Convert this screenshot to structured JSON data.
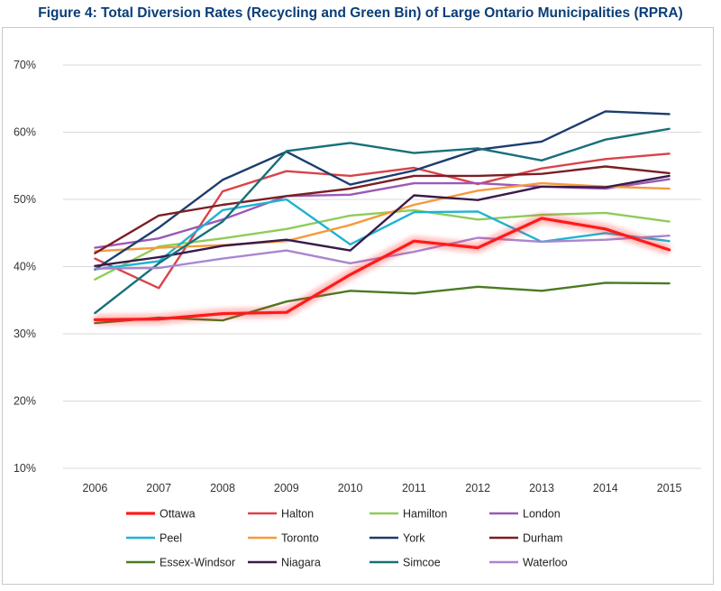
{
  "title": "Figure 4: Total Diversion Rates (Recycling and Green Bin) of Large Ontario Municipalities (RPRA)",
  "chart_data": {
    "type": "line",
    "title": "Figure 4: Total Diversion Rates (Recycling and Green Bin) of Large Ontario Municipalities (RPRA)",
    "xlabel": "",
    "ylabel": "",
    "x": [
      "2006",
      "2007",
      "2008",
      "2009",
      "2010",
      "2011",
      "2012",
      "2013",
      "2014",
      "2015"
    ],
    "ylim": [
      0.1,
      0.7
    ],
    "yticks": [
      0.1,
      0.2,
      0.3,
      0.4,
      0.5,
      0.6,
      0.7
    ],
    "ytick_labels": [
      "10%",
      "20%",
      "30%",
      "40%",
      "50%",
      "60%",
      "70%"
    ],
    "grid": "horizontal",
    "legend_position": "bottom",
    "series": [
      {
        "name": "Ottawa",
        "color": "#ff1a1a",
        "highlight": true,
        "values": [
          0.321,
          0.322,
          0.33,
          0.332,
          0.388,
          0.438,
          0.428,
          0.472,
          0.456,
          0.425
        ]
      },
      {
        "name": "Halton",
        "color": "#d9444a",
        "values": [
          0.412,
          0.368,
          0.512,
          0.542,
          0.535,
          0.547,
          0.523,
          0.546,
          0.56,
          0.568
        ]
      },
      {
        "name": "Hamilton",
        "color": "#8fcc5a",
        "values": [
          0.381,
          0.43,
          0.442,
          0.456,
          0.476,
          0.484,
          0.47,
          0.477,
          0.48,
          0.467
        ]
      },
      {
        "name": "London",
        "color": "#9b59b6",
        "values": [
          0.428,
          0.442,
          0.47,
          0.505,
          0.507,
          0.524,
          0.524,
          0.519,
          0.516,
          0.53
        ]
      },
      {
        "name": "Peel",
        "color": "#1fb3d1",
        "values": [
          0.396,
          0.408,
          0.484,
          0.5,
          0.433,
          0.481,
          0.482,
          0.437,
          0.45,
          0.438
        ]
      },
      {
        "name": "Toronto",
        "color": "#f59a3a",
        "values": [
          0.423,
          0.428,
          0.432,
          0.438,
          0.462,
          0.492,
          0.513,
          0.524,
          0.519,
          0.516
        ]
      },
      {
        "name": "York",
        "color": "#1c3d6e",
        "values": [
          0.396,
          0.458,
          0.529,
          0.571,
          0.522,
          0.543,
          0.574,
          0.586,
          0.631,
          0.627
        ]
      },
      {
        "name": "Durham",
        "color": "#7a1f24",
        "values": [
          0.42,
          0.476,
          0.492,
          0.505,
          0.516,
          0.535,
          0.535,
          0.538,
          0.549,
          0.539
        ]
      },
      {
        "name": "Essex-Windsor",
        "color": "#4a7a22",
        "values": [
          0.316,
          0.324,
          0.32,
          0.348,
          0.364,
          0.36,
          0.37,
          0.364,
          0.376,
          0.375
        ]
      },
      {
        "name": "Niagara",
        "color": "#3a1a4a",
        "values": [
          0.401,
          0.414,
          0.431,
          0.44,
          0.424,
          0.506,
          0.499,
          0.519,
          0.518,
          0.535
        ]
      },
      {
        "name": "Simcoe",
        "color": "#17707a",
        "values": [
          0.331,
          0.405,
          0.467,
          0.572,
          0.584,
          0.569,
          0.576,
          0.558,
          0.589,
          0.605
        ]
      },
      {
        "name": "Waterloo",
        "color": "#a986cf",
        "values": [
          0.397,
          0.398,
          0.412,
          0.424,
          0.405,
          0.422,
          0.443,
          0.437,
          0.44,
          0.446
        ]
      }
    ]
  }
}
